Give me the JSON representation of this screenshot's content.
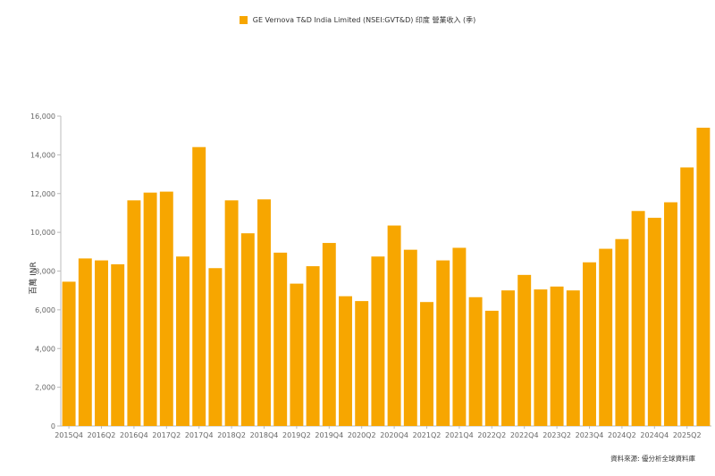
{
  "colors": {
    "bar": "#F7A600",
    "axis": "#bbbbbb",
    "text": "#666666"
  },
  "legend_label": "GE Vernova T&D India Limited (NSEI:GVT&D) 印度 營業收入 (季)",
  "source_label": "資料來源: 優分析全球資料庫",
  "chart_data": {
    "type": "bar",
    "title": "GE Vernova T&D India Limited (NSEI:GVT&D) 印度 營業收入 (季)",
    "xlabel": "",
    "ylabel": "百萬 INR",
    "ylim": [
      0,
      16000
    ],
    "yticks": [
      0,
      2000,
      4000,
      6000,
      8000,
      10000,
      12000,
      14000,
      16000
    ],
    "ytick_labels": [
      "0",
      "2,000",
      "4,000",
      "6,000",
      "8,000",
      "10,000",
      "12,000",
      "14,000",
      "16,000"
    ],
    "grid": false,
    "legend_position": "top-center",
    "categories": [
      "2015Q4",
      "2016Q1",
      "2016Q2",
      "2016Q3",
      "2016Q4",
      "2017Q1",
      "2017Q2",
      "2017Q3",
      "2017Q4",
      "2018Q1",
      "2018Q2",
      "2018Q3",
      "2018Q4",
      "2019Q1",
      "2019Q2",
      "2019Q3",
      "2019Q4",
      "2020Q1",
      "2020Q2",
      "2020Q3",
      "2020Q4",
      "2021Q1",
      "2021Q2",
      "2021Q3",
      "2021Q4",
      "2022Q1",
      "2022Q2",
      "2022Q3",
      "2022Q4",
      "2023Q1",
      "2023Q2",
      "2023Q3",
      "2023Q4",
      "2024Q1",
      "2024Q2",
      "2024Q3",
      "2024Q4",
      "2025Q1",
      "2025Q2",
      "2025Q3"
    ],
    "x_tick_labels": [
      "2015Q4",
      "2016Q2",
      "2016Q4",
      "2017Q2",
      "2017Q4",
      "2018Q2",
      "2018Q4",
      "2019Q2",
      "2019Q4",
      "2020Q2",
      "2020Q4",
      "2021Q2",
      "2021Q4",
      "2022Q2",
      "2022Q4",
      "2023Q2",
      "2023Q4",
      "2024Q2",
      "2024Q4",
      "2025Q2"
    ],
    "series": [
      {
        "name": "GE Vernova T&D India Limited (NSEI:GVT&D) 印度 營業收入 (季)",
        "values": [
          7450,
          8650,
          8550,
          8350,
          11650,
          12050,
          12100,
          8750,
          14400,
          8150,
          11650,
          9950,
          11700,
          8950,
          7350,
          8250,
          9450,
          6700,
          6450,
          8750,
          10350,
          9100,
          6400,
          8550,
          9200,
          6650,
          5950,
          7000,
          7800,
          7050,
          7200,
          7000,
          8450,
          9150,
          9650,
          11100,
          10750,
          11550,
          13350,
          15400
        ]
      }
    ]
  }
}
